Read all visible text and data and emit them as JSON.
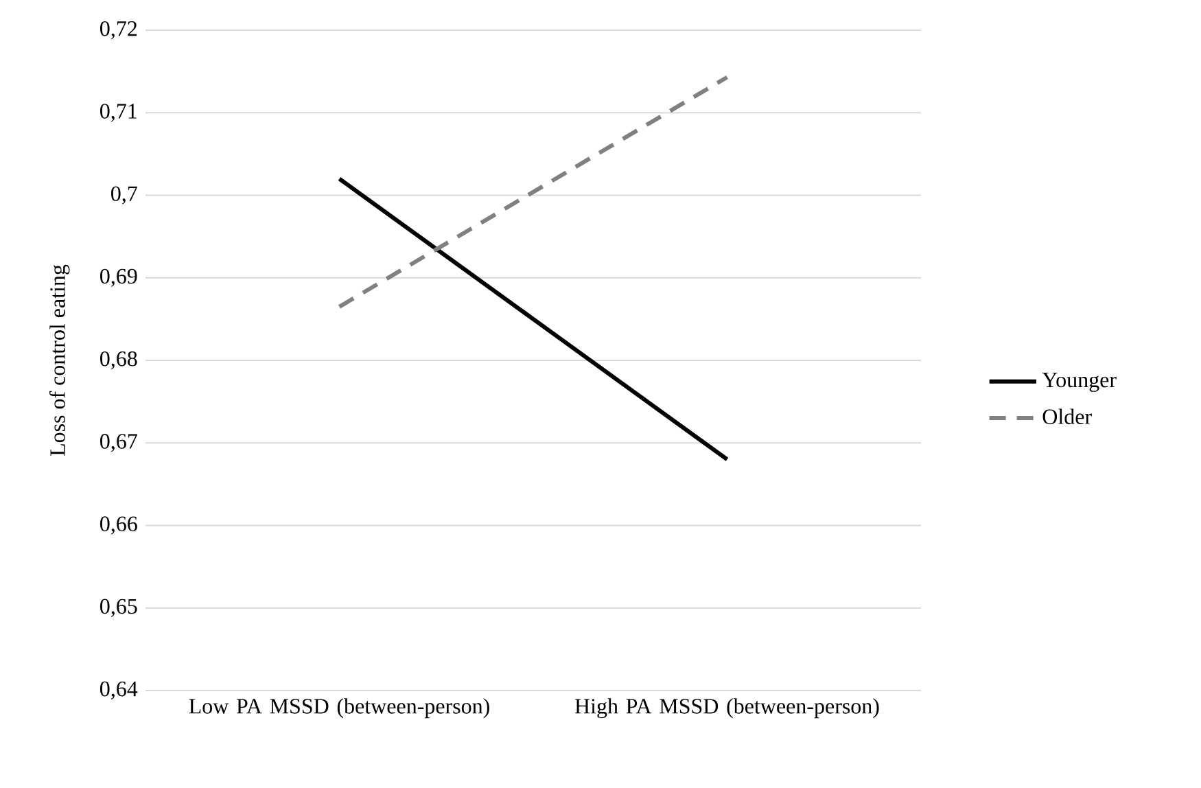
{
  "chart_data": {
    "type": "line",
    "ylabel": "Loss of control eating",
    "categories": [
      "Low PA MSSD (between-person)",
      "High PA MSSD (between-person)"
    ],
    "series": [
      {
        "name": "Younger",
        "color": "#000000",
        "values": [
          0.702,
          0.668
        ],
        "line_style": "solid"
      },
      {
        "name": "Older",
        "color": "#808080",
        "values": [
          0.6865,
          0.7143
        ],
        "line_style": "dashed"
      }
    ],
    "ylim": [
      0.64,
      0.72
    ],
    "yticks": [
      {
        "value": 0.64,
        "label": "0,64"
      },
      {
        "value": 0.65,
        "label": "0,65"
      },
      {
        "value": 0.66,
        "label": "0,66"
      },
      {
        "value": 0.67,
        "label": "0,67"
      },
      {
        "value": 0.68,
        "label": "0,68"
      },
      {
        "value": 0.69,
        "label": "0,69"
      },
      {
        "value": 0.7,
        "label": "0,7"
      },
      {
        "value": 0.71,
        "label": "0,71"
      },
      {
        "value": 0.72,
        "label": "0,72"
      }
    ],
    "grid": "y",
    "legend": "right",
    "marker": "none"
  }
}
